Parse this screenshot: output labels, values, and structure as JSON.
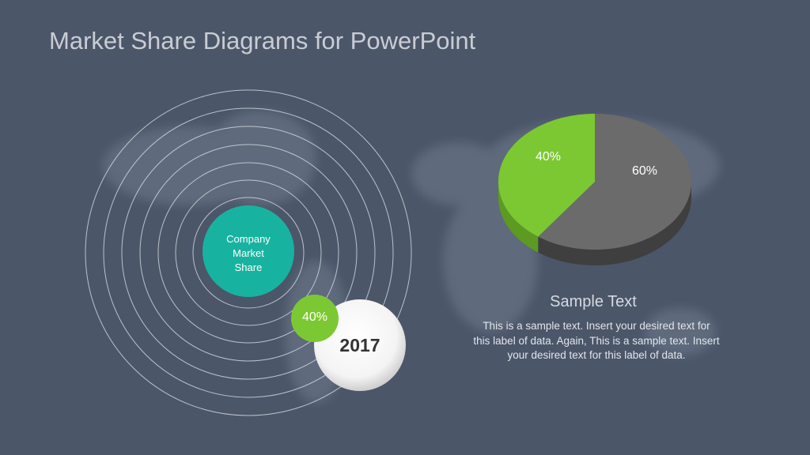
{
  "title": "Market Share Diagrams for PowerPoint",
  "rings": {
    "center_label": "Company Market Share",
    "center_lines": [
      "Company",
      "Market",
      "Share"
    ],
    "percent_badge": "40%",
    "year": "2017"
  },
  "pie": {
    "slices": [
      {
        "label": "40%",
        "value": 40,
        "color": "#7cc832"
      },
      {
        "label": "60%",
        "value": 60,
        "color": "#6b6b6b"
      }
    ]
  },
  "sample": {
    "heading": "Sample Text",
    "body": "This is a sample text. Insert your desired text for this label of data. Again, This is a sample text. Insert your desired text for this label of data."
  },
  "colors": {
    "background": "#4b5669",
    "teal": "#17b3a0",
    "green": "#7cc832",
    "gray": "#6b6b6b"
  }
}
